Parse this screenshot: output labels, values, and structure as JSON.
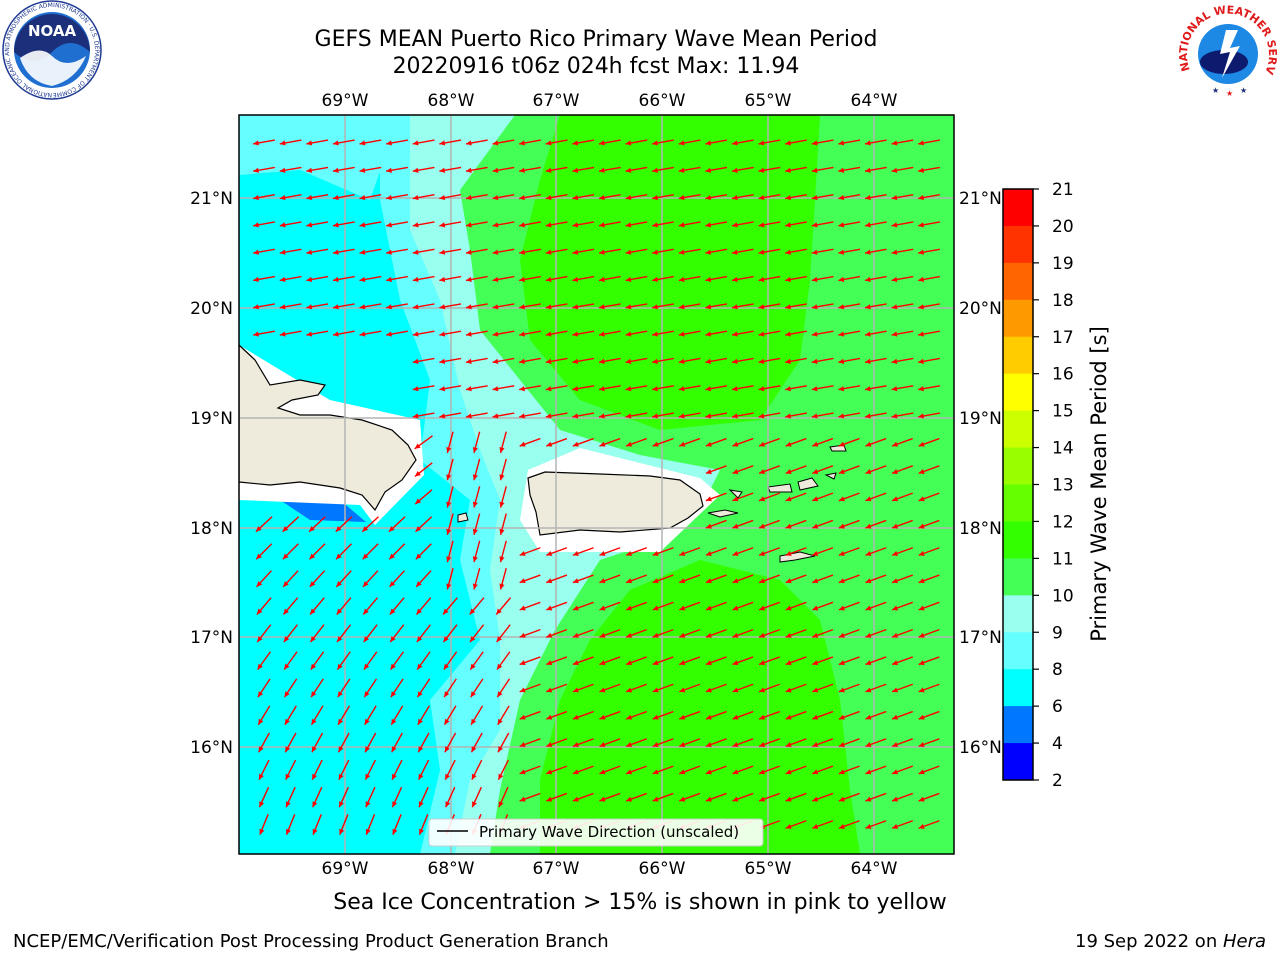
{
  "header": {
    "title_line1": "GEFS MEAN Puerto Rico Primary Wave Mean Period",
    "title_line2": "20220916 t06z 024h fcst   Max: 11.94"
  },
  "logos": {
    "noaa_text": "NOAA",
    "noaa_ring_text": "NATIONAL OCEANIC AND ATMOSPHERIC ADMINISTRATION · U.S. DEPARTMENT OF COMMERCE",
    "nws_ring_text": "NATIONAL WEATHER SERVICE"
  },
  "map": {
    "lon_labels": [
      "69°W",
      "68°W",
      "67°W",
      "66°W",
      "65°W",
      "64°W"
    ],
    "lat_labels": [
      "21°N",
      "20°N",
      "19°N",
      "18°N",
      "17°N",
      "16°N"
    ],
    "legend_label": "Primary Wave Direction (unscaled)",
    "arrow_color": "#ff0000"
  },
  "colorbar": {
    "title": "Primary Wave Mean Period [s]",
    "ticks": [
      "21",
      "20",
      "19",
      "18",
      "17",
      "16",
      "15",
      "14",
      "13",
      "12",
      "11",
      "10",
      "9",
      "8",
      "6",
      "4",
      "2"
    ],
    "colors": [
      "#ff0000",
      "#ff3300",
      "#ff6600",
      "#ff9900",
      "#ffcc00",
      "#ffff00",
      "#ccff00",
      "#99ff00",
      "#66ff00",
      "#33ff00",
      "#44ff55",
      "#99ffee",
      "#66ffff",
      "#00ffff",
      "#0077ff",
      "#0000ff"
    ]
  },
  "colors": {
    "zone_cyan": "#00ffff",
    "zone_lightcyan": "#66ffff",
    "zone_aqua": "#99ffee",
    "zone_lightgreen": "#44ff55",
    "zone_green": "#33ff00",
    "zone_blue": "#0077ff",
    "land": "#efebdc"
  },
  "notes": {
    "sea_ice": "Sea Ice Concentration > 15% is shown in pink to yellow"
  },
  "footer": {
    "left": "NCEP/EMC/Verification Post Processing Product Generation Branch",
    "date": "19 Sep 2022 on ",
    "machine": "Hera"
  }
}
